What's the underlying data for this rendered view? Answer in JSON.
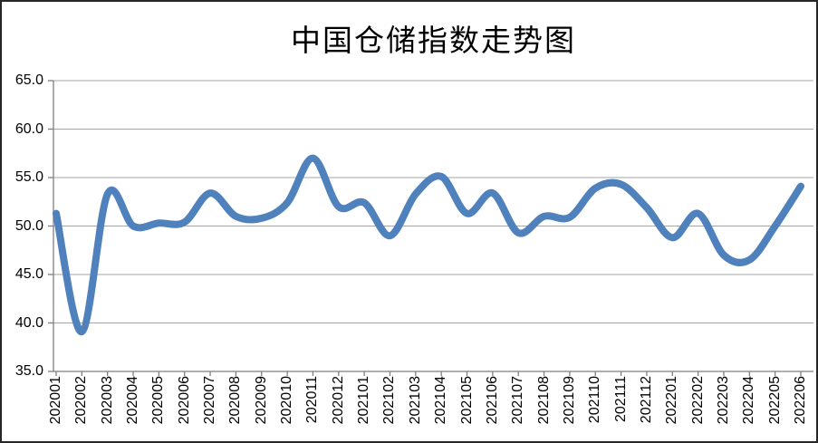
{
  "chart_data": {
    "type": "line",
    "title": "中国仓储指数走势图",
    "categories": [
      "202001",
      "202002",
      "202003",
      "202004",
      "202005",
      "202006",
      "202007",
      "202008",
      "202009",
      "202010",
      "202011",
      "202012",
      "202101",
      "202102",
      "202103",
      "202104",
      "202105",
      "202106",
      "202107",
      "202108",
      "202109",
      "202110",
      "202111",
      "202112",
      "202201",
      "202202",
      "202203",
      "202204",
      "202205",
      "202206"
    ],
    "values": [
      51.3,
      39.1,
      53.3,
      50.0,
      50.3,
      50.4,
      53.4,
      51.0,
      50.8,
      52.4,
      57.0,
      52.0,
      52.4,
      49.0,
      53.3,
      55.1,
      51.3,
      53.4,
      49.3,
      51.0,
      50.9,
      53.9,
      54.3,
      51.9,
      48.8,
      51.3,
      47.0,
      46.5,
      50.0,
      54.1
    ],
    "xlabel": "",
    "ylabel": "",
    "ylim": [
      35.0,
      65.0
    ],
    "y_tick_labels": [
      "65.0",
      "60.0",
      "55.0",
      "50.0",
      "45.0",
      "40.0",
      "35.0"
    ],
    "grid": "horizontal gridlines on, every 5.0",
    "legend": "none",
    "smooth": true,
    "line_color": "#4F81BD",
    "gridline_color": "#A6A6A6",
    "axis_color": "#7F7F7F",
    "text_color": "#000000"
  }
}
